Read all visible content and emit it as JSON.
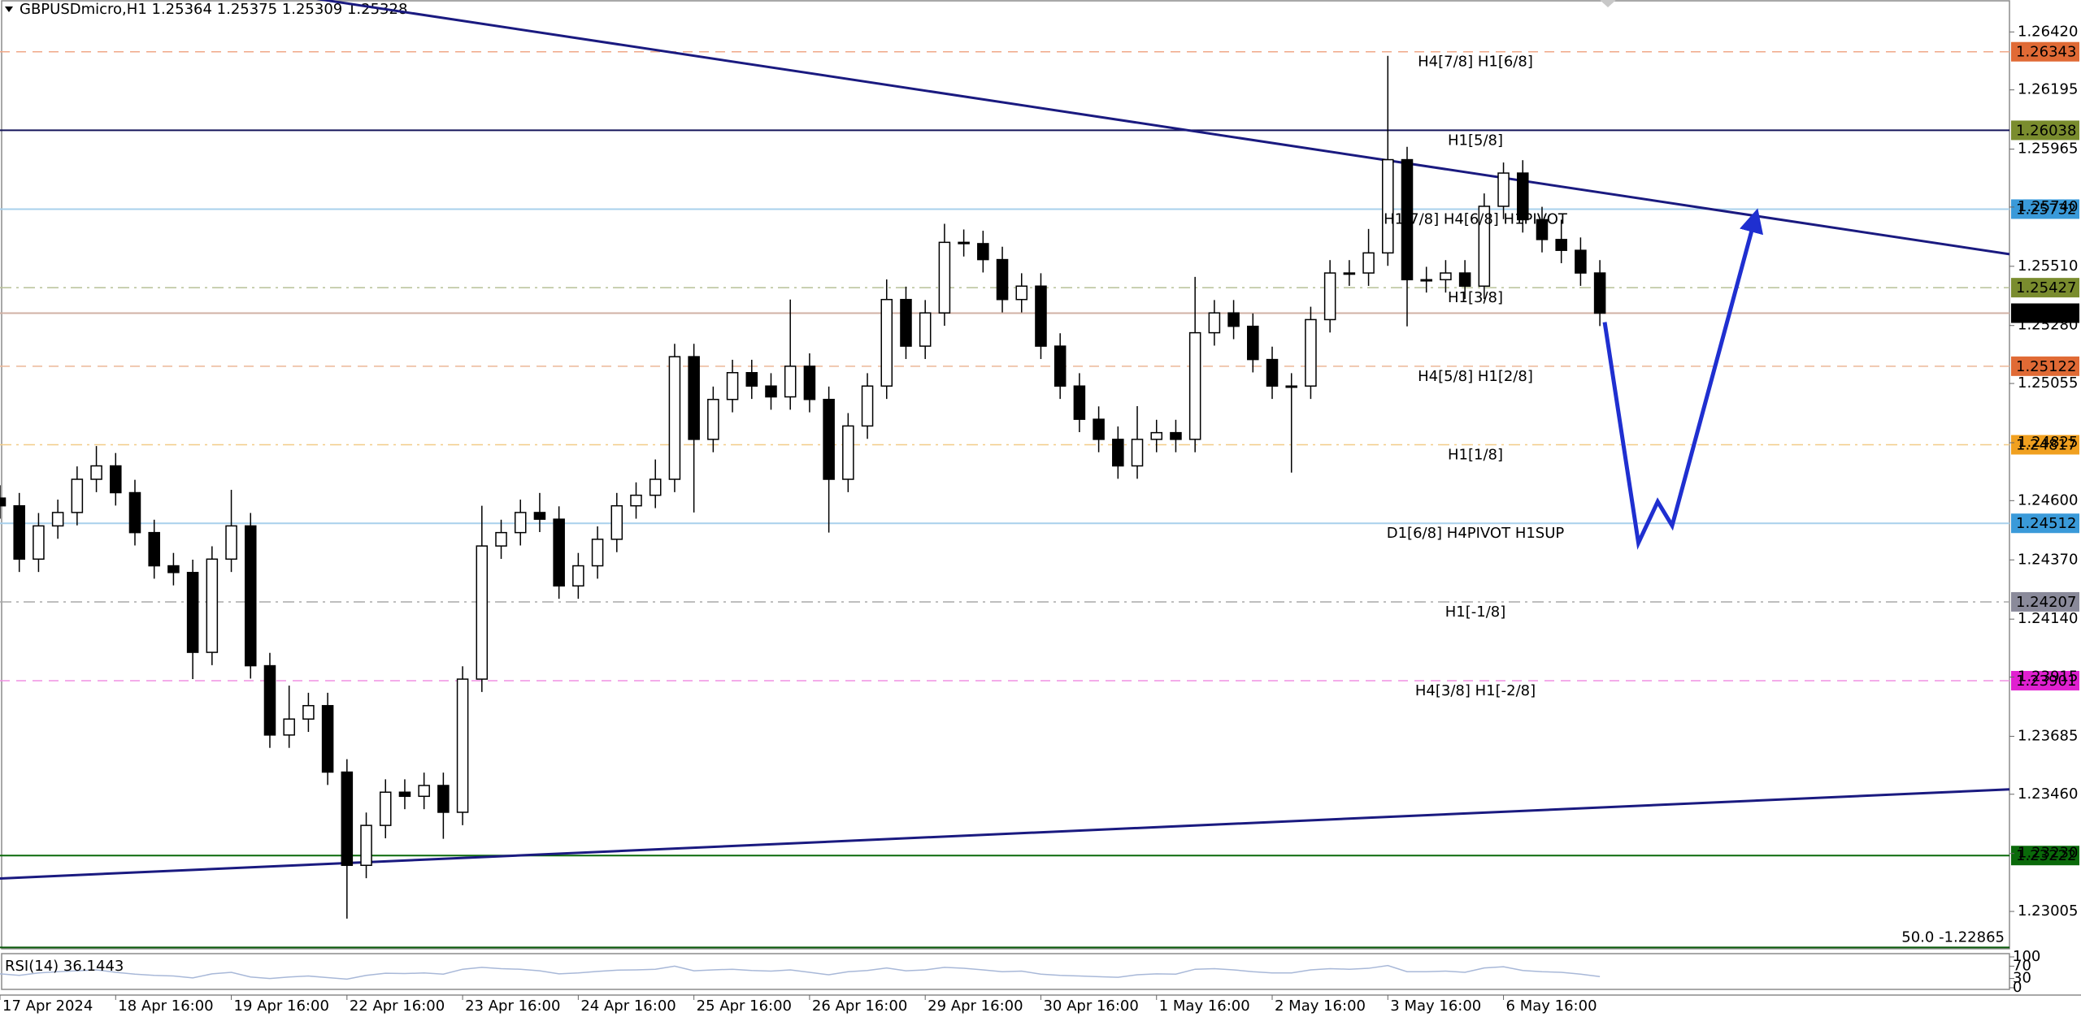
{
  "chart_data": {
    "type": "candlestick",
    "title": "GBPUSDmicro,H1  1.25364 1.25375 1.25309 1.25328",
    "x": [
      0,
      4,
      8,
      12,
      16,
      20,
      24,
      28,
      32,
      36,
      40,
      44,
      48,
      52,
      56,
      60,
      64,
      68,
      72,
      76,
      80,
      84,
      88,
      92,
      96,
      100,
      104,
      108,
      112,
      116,
      120,
      124,
      128,
      132,
      136,
      140,
      144,
      148,
      152,
      156,
      160,
      164,
      168,
      172,
      176,
      180,
      184,
      188,
      192,
      196,
      200,
      204,
      208,
      212,
      216,
      220,
      224,
      228,
      232,
      236,
      240,
      244,
      248,
      252,
      256,
      260,
      264,
      268,
      272,
      276,
      280,
      284,
      288,
      292,
      296,
      300,
      304,
      308,
      312,
      316,
      320,
      324,
      328,
      332
    ],
    "open": [
      1.2461,
      1.2458,
      1.24373,
      1.24502,
      1.24554,
      1.24683,
      1.24735,
      1.24631,
      1.24476,
      1.24347,
      1.24321,
      1.24011,
      1.24373,
      1.24502,
      1.23959,
      1.2369,
      1.23752,
      1.23804,
      1.23546,
      1.23184,
      1.23339,
      1.23468,
      1.23452,
      1.23494,
      1.2339,
      1.23907,
      1.24424,
      1.24476,
      1.24554,
      1.24528,
      1.24269,
      1.24347,
      1.2445,
      1.2458,
      1.24621,
      1.24683,
      1.25159,
      1.24838,
      1.24993,
      1.25097,
      1.25045,
      1.25003,
      1.25122,
      1.24993,
      1.24683,
      1.2489,
      1.25045,
      1.25381,
      1.252,
      1.25329,
      1.25603,
      1.25598,
      1.25536,
      1.25381,
      1.25433,
      1.252,
      1.25045,
      1.24916,
      1.24838,
      1.24735,
      1.24838,
      1.24864,
      1.24838,
      1.25252,
      1.25329,
      1.25277,
      1.25148,
      1.25045,
      1.25045,
      1.25303,
      1.25484,
      1.25484,
      1.25562,
      1.25924,
      1.25458,
      1.25458,
      1.25484,
      1.25433,
      1.25743,
      1.25872,
      1.25691,
      1.25614,
      1.25572,
      1.25484
    ],
    "high": [
      1.2466,
      1.2463,
      1.24552,
      1.24604,
      1.24733,
      1.24812,
      1.24785,
      1.24681,
      1.24526,
      1.24397,
      1.24371,
      1.24423,
      1.24642,
      1.24552,
      1.24009,
      1.23882,
      1.23854,
      1.23854,
      1.23596,
      1.23389,
      1.23518,
      1.23518,
      1.23544,
      1.23544,
      1.23957,
      1.2458,
      1.24526,
      1.24604,
      1.2463,
      1.24578,
      1.24397,
      1.245,
      1.2463,
      1.24671,
      1.2476,
      1.25209,
      1.25209,
      1.25043,
      1.25147,
      1.25147,
      1.25095,
      1.25381,
      1.25172,
      1.25043,
      1.2494,
      1.25095,
      1.25459,
      1.25431,
      1.25379,
      1.25675,
      1.25653,
      1.25648,
      1.25586,
      1.25483,
      1.25483,
      1.2525,
      1.25095,
      1.24966,
      1.24888,
      1.24967,
      1.24914,
      1.24914,
      1.25469,
      1.25379,
      1.25379,
      1.25327,
      1.25198,
      1.25095,
      1.25353,
      1.25534,
      1.25534,
      1.25655,
      1.26327,
      1.25974,
      1.25508,
      1.25534,
      1.25534,
      1.25793,
      1.25913,
      1.25922,
      1.25741,
      1.25691,
      1.25622,
      1.25534
    ],
    "low": [
      1.2453,
      1.24323,
      1.24323,
      1.24452,
      1.24504,
      1.24633,
      1.24581,
      1.24426,
      1.24297,
      1.24271,
      1.23907,
      1.23961,
      1.24323,
      1.23909,
      1.2364,
      1.2364,
      1.23702,
      1.23496,
      1.22977,
      1.23134,
      1.23289,
      1.23402,
      1.23402,
      1.23287,
      1.2334,
      1.23857,
      1.24374,
      1.24426,
      1.24478,
      1.24219,
      1.24219,
      1.24297,
      1.244,
      1.2453,
      1.24571,
      1.24633,
      1.24554,
      1.24788,
      1.24943,
      1.24995,
      1.24953,
      1.24953,
      1.24943,
      1.24476,
      1.24633,
      1.2484,
      1.24995,
      1.2515,
      1.2515,
      1.25279,
      1.25548,
      1.25486,
      1.25331,
      1.25331,
      1.2515,
      1.24995,
      1.24866,
      1.24788,
      1.24685,
      1.24685,
      1.24788,
      1.24788,
      1.24788,
      1.25202,
      1.25227,
      1.25098,
      1.24995,
      1.24709,
      1.24995,
      1.25253,
      1.25434,
      1.25434,
      1.25512,
      1.25277,
      1.25408,
      1.25408,
      1.25383,
      1.25383,
      1.25693,
      1.25641,
      1.25564,
      1.25522,
      1.25434,
      1.25278
    ],
    "close": [
      1.2458,
      1.24373,
      1.24502,
      1.24554,
      1.24683,
      1.24735,
      1.24631,
      1.24476,
      1.24347,
      1.24321,
      1.24011,
      1.24373,
      1.24502,
      1.23959,
      1.2369,
      1.23752,
      1.23804,
      1.23546,
      1.23184,
      1.23339,
      1.23468,
      1.23452,
      1.23494,
      1.2339,
      1.23907,
      1.24424,
      1.24476,
      1.24554,
      1.24528,
      1.24269,
      1.24347,
      1.2445,
      1.2458,
      1.24621,
      1.24683,
      1.25159,
      1.24838,
      1.24993,
      1.25097,
      1.25045,
      1.25003,
      1.25122,
      1.24993,
      1.24683,
      1.2489,
      1.25045,
      1.25381,
      1.252,
      1.25329,
      1.25603,
      1.25598,
      1.25536,
      1.25381,
      1.25433,
      1.252,
      1.25045,
      1.24916,
      1.24838,
      1.24735,
      1.24838,
      1.24864,
      1.24838,
      1.25252,
      1.25329,
      1.25277,
      1.25148,
      1.25045,
      1.25045,
      1.25303,
      1.25484,
      1.25484,
      1.25562,
      1.25924,
      1.25458,
      1.25458,
      1.25484,
      1.25433,
      1.25743,
      1.25872,
      1.25691,
      1.25614,
      1.25572,
      1.25484,
      1.25328
    ],
    "xlim": [
      0,
      417
    ],
    "xticks": [
      {
        "value": 0,
        "label": "17 Apr 2024"
      },
      {
        "value": 24,
        "label": "18 Apr 16:00"
      },
      {
        "value": 48,
        "label": "19 Apr 16:00"
      },
      {
        "value": 72,
        "label": "22 Apr 16:00"
      },
      {
        "value": 96,
        "label": "23 Apr 16:00"
      },
      {
        "value": 120,
        "label": "24 Apr 16:00"
      },
      {
        "value": 144,
        "label": "25 Apr 16:00"
      },
      {
        "value": 168,
        "label": "26 Apr 16:00"
      },
      {
        "value": 192,
        "label": "29 Apr 16:00"
      },
      {
        "value": 216,
        "label": "30 Apr 16:00"
      },
      {
        "value": 240,
        "label": "1 May 16:00"
      },
      {
        "value": 264,
        "label": "2 May 16:00"
      },
      {
        "value": 288,
        "label": "3 May 16:00"
      },
      {
        "value": 312,
        "label": "6 May 16:00"
      }
    ],
    "ylim": [
      1.2286,
      1.26544
    ],
    "yticks": [
      {
        "value": 1.2642,
        "label": "1.26420"
      },
      1.26195,
      1.25965,
      {
        "value": 1.2574,
        "label": "1.25740"
      },
      {
        "value": 1.2551,
        "label": "1.25510"
      },
      {
        "value": 1.2528,
        "label": "1.25280"
      },
      1.25055,
      1.24825,
      {
        "value": 1.246,
        "label": "1.24600"
      },
      {
        "value": 1.2437,
        "label": "1.24370"
      },
      {
        "value": 1.2414,
        "label": "1.24140"
      },
      1.23915,
      1.23685,
      {
        "value": 1.2346,
        "label": "1.23460"
      },
      {
        "value": 1.2323,
        "label": "1.23230"
      },
      1.23005
    ],
    "up_color": "#ffffff",
    "down_color": "#000000",
    "levels": [
      {
        "value": 1.26343,
        "text": "H4[7/8] H1[6/8]",
        "color": "#e06a35",
        "line_color": "#f0a888",
        "style": "dashed"
      },
      {
        "value": 1.26038,
        "text": "H1[5/8]",
        "color": "#7a8c2e",
        "line_color": "#14145a",
        "style": "solid"
      },
      {
        "value": 1.25732,
        "text": "H1[7/8] H4[6/8] H1PIVOT",
        "color": "#3a9ad9",
        "line_color": "#a8d0ec",
        "style": "solid"
      },
      {
        "value": 1.25427,
        "text": "H1[3/8]",
        "color": "#7a8c2e",
        "line_color": "#b8c098",
        "style": "dashdot"
      },
      {
        "value": 1.25328,
        "color": "#000000",
        "line_color": "#d0b0a4",
        "style": "solid"
      },
      {
        "value": 1.25122,
        "text": "H4[5/8] H1[2/8]",
        "color": "#e06a35",
        "line_color": "#ecb898",
        "style": "dashed"
      },
      {
        "value": 1.24817,
        "text": "H1[1/8]",
        "color": "#f0a020",
        "line_color": "#f2cc88",
        "style": "dashdot"
      },
      {
        "value": 1.24512,
        "text": "D1[6/8] H4PIVOT H1SUP",
        "color": "#3a9ad9",
        "line_color": "#a8d0ec",
        "style": "solid"
      },
      {
        "value": 1.24207,
        "text": "H1[-1/8]",
        "color": "#8a8a9a",
        "line_color": "#a8a8a8",
        "style": "dashdot"
      },
      {
        "value": 1.23901,
        "text": "H4[3/8] H1[-2/8]",
        "color": "#e020d0",
        "line_color": "#f090e4",
        "style": "dashed"
      },
      {
        "value": 1.23222,
        "color": "#0a6a0a",
        "line_color": "#0a6a0a",
        "style": "solid"
      },
      {
        "value": 1.22865,
        "text": "50.0 -1.22865",
        "color": "#0a6a0a",
        "line_color": "#0a5a0a",
        "style": "solid",
        "tag": false
      }
    ],
    "trendlines": [
      {
        "x": [
          0,
          417
        ],
        "y": [
          1.26734,
          1.25557
        ],
        "color": "#1a1a80"
      },
      {
        "x": [
          0,
          417
        ],
        "y": [
          1.23133,
          1.23479
        ],
        "color": "#1a1a80"
      }
    ],
    "forecast": {
      "x": [
        333,
        340,
        344,
        347,
        364.5
      ],
      "y": [
        1.25293,
        1.24436,
        1.24596,
        1.24503,
        1.25717
      ],
      "color": "#1f2fd0"
    },
    "rsi": {
      "label": "RSI(14) 36.1443",
      "color": "#a8b8d8",
      "ylim": [
        0,
        100
      ],
      "yticks": [
        0,
        30,
        70,
        100
      ],
      "values": [
        45,
        40,
        48,
        52,
        55,
        58,
        50,
        44,
        40,
        38,
        32,
        45,
        50,
        35,
        30,
        35,
        38,
        33,
        28,
        40,
        47,
        46,
        48,
        44,
        60,
        66,
        62,
        60,
        55,
        45,
        48,
        53,
        57,
        58,
        60,
        70,
        55,
        58,
        60,
        56,
        54,
        58,
        50,
        42,
        52,
        56,
        64,
        55,
        58,
        66,
        63,
        58,
        52,
        54,
        44,
        40,
        38,
        36,
        34,
        42,
        45,
        44,
        60,
        62,
        58,
        52,
        48,
        48,
        58,
        62,
        60,
        63,
        72,
        52,
        52,
        54,
        50,
        64,
        68,
        56,
        52,
        50,
        44,
        36.1443
      ]
    }
  }
}
